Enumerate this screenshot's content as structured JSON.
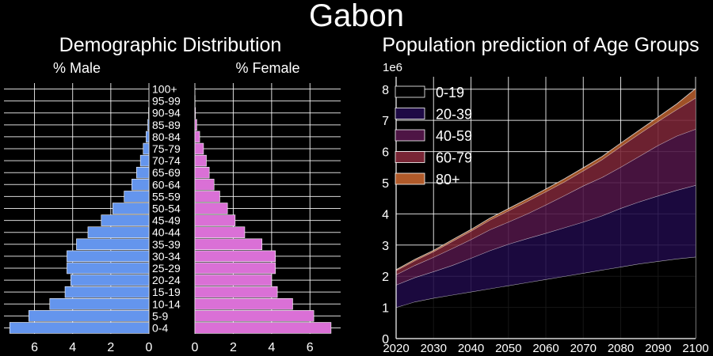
{
  "title": "Gabon",
  "left_panel": {
    "title": "Demographic Distribution",
    "male_label": "% Male",
    "female_label": "% Female"
  },
  "right_panel": {
    "title": "Population prediction of Age Groups",
    "scale_label": "1e6"
  },
  "colors": {
    "background": "#000000",
    "male": "#6495ED",
    "female": "#DA70D6",
    "grid": "#ffffff",
    "age_0_19": "#000000",
    "age_20_39": "#1e0a45",
    "age_40_59": "#4e1545",
    "age_60_79": "#782535",
    "age_80_plus": "#b05a2a"
  },
  "chart_data": [
    {
      "type": "bar",
      "subtype": "population_pyramid",
      "title": "Demographic Distribution",
      "categories": [
        "0-4",
        "5-9",
        "10-14",
        "15-19",
        "20-24",
        "25-29",
        "30-34",
        "35-39",
        "40-44",
        "45-49",
        "50-54",
        "55-59",
        "60-64",
        "65-69",
        "70-74",
        "75-79",
        "80-84",
        "85-89",
        "90-94",
        "95-99",
        "100+"
      ],
      "series": [
        {
          "name": "% Male",
          "values": [
            7.3,
            6.3,
            5.2,
            4.4,
            4.1,
            4.3,
            4.3,
            3.8,
            3.2,
            2.5,
            1.9,
            1.3,
            0.9,
            0.65,
            0.45,
            0.3,
            0.15,
            0.06,
            0.02,
            0.0,
            0.0
          ]
        },
        {
          "name": "% Female",
          "values": [
            7.1,
            6.2,
            5.1,
            4.3,
            4.0,
            4.2,
            4.2,
            3.5,
            2.6,
            2.1,
            1.7,
            1.3,
            1.0,
            0.75,
            0.6,
            0.45,
            0.25,
            0.1,
            0.03,
            0.01,
            0.0
          ]
        }
      ],
      "xlabel_male": "% Male",
      "xlabel_female": "% Female",
      "male_ticks": [
        0,
        2,
        4,
        6
      ],
      "female_ticks": [
        0,
        2,
        4,
        6
      ],
      "xlim": [
        0,
        7.6
      ],
      "grid": true
    },
    {
      "type": "area",
      "stacked": true,
      "title": "Population prediction of Age Groups",
      "x": [
        2020,
        2025,
        2030,
        2035,
        2040,
        2045,
        2050,
        2055,
        2060,
        2065,
        2070,
        2075,
        2080,
        2085,
        2090,
        2095,
        2100
      ],
      "series": [
        {
          "name": "0-19",
          "values": [
            1.0,
            1.18,
            1.3,
            1.4,
            1.5,
            1.6,
            1.7,
            1.8,
            1.9,
            2.0,
            2.1,
            2.2,
            2.3,
            2.4,
            2.48,
            2.56,
            2.62
          ]
        },
        {
          "name": "20-39",
          "values": [
            0.72,
            0.78,
            0.85,
            0.95,
            1.08,
            1.22,
            1.33,
            1.41,
            1.48,
            1.56,
            1.64,
            1.74,
            1.88,
            1.99,
            2.1,
            2.2,
            2.3
          ]
        },
        {
          "name": "40-59",
          "values": [
            0.33,
            0.39,
            0.46,
            0.54,
            0.6,
            0.67,
            0.71,
            0.79,
            0.91,
            1.03,
            1.16,
            1.23,
            1.32,
            1.46,
            1.62,
            1.74,
            1.8
          ]
        },
        {
          "name": "60-79",
          "values": [
            0.13,
            0.15,
            0.18,
            0.23,
            0.27,
            0.31,
            0.36,
            0.4,
            0.42,
            0.44,
            0.48,
            0.57,
            0.66,
            0.72,
            0.77,
            0.85,
            1.0
          ]
        },
        {
          "name": "80+",
          "values": [
            0.03,
            0.04,
            0.04,
            0.05,
            0.05,
            0.06,
            0.07,
            0.08,
            0.09,
            0.1,
            0.1,
            0.1,
            0.11,
            0.12,
            0.14,
            0.18,
            0.3
          ]
        }
      ],
      "ylabel_scale": "1e6",
      "xticks": [
        2020,
        2030,
        2040,
        2050,
        2060,
        2070,
        2080,
        2090,
        2100
      ],
      "yticks": [
        0,
        1,
        2,
        3,
        4,
        5,
        6,
        7,
        8
      ],
      "xlim": [
        2020,
        2100
      ],
      "ylim": [
        0,
        8.4
      ],
      "grid": true,
      "legend_position": "top-left"
    }
  ]
}
